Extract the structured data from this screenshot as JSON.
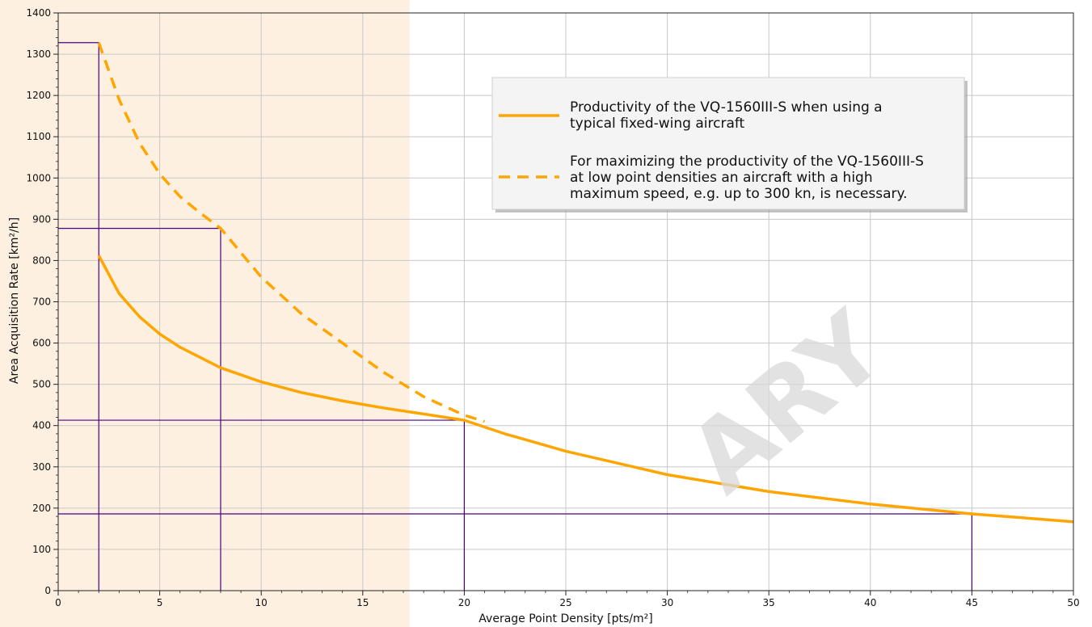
{
  "chart_data": {
    "type": "line",
    "xlabel": "Average Point Density [pts/m²]",
    "ylabel": "Area Acquisition Rate [km²/h]",
    "xlim": [
      0,
      50
    ],
    "ylim": [
      0,
      1400
    ],
    "x_ticks": [
      "0",
      "5",
      "10",
      "15",
      "20",
      "25",
      "30",
      "35",
      "40",
      "45",
      "50"
    ],
    "y_ticks": [
      "0",
      "100",
      "200",
      "300",
      "400",
      "500",
      "600",
      "700",
      "800",
      "900",
      "1000",
      "1100",
      "1200",
      "1300",
      "1400"
    ],
    "grid": true,
    "legend_position": "top-right",
    "shaded_region": {
      "x_from": 0,
      "x_to": 17.3,
      "color": "#fdf0e0"
    },
    "watermark": "ARY",
    "series": [
      {
        "name": "Productivity of the VQ-1560III-S when using a typical fixed-wing aircraft",
        "legend_lines": [
          "Productivity of the VQ-1560III-S when using a",
          "typical fixed-wing aircraft"
        ],
        "style": "solid",
        "color": "#ffa500",
        "x": [
          2,
          3,
          4,
          5,
          6,
          8,
          10,
          12,
          14,
          16,
          18,
          20,
          22,
          25,
          30,
          35,
          40,
          45,
          50
        ],
        "y": [
          812,
          720,
          664,
          622,
          590,
          540,
          506,
          480,
          460,
          443,
          428,
          413,
          380,
          338,
          281,
          240,
          210,
          186,
          167
        ]
      },
      {
        "name": "For maximizing the productivity of the VQ-1560III-S at low point densities an aircraft with a high maximum speed, e.g. up to 300 kn, is necessary.",
        "legend_lines": [
          "For maximizing the productivity of the VQ-1560III-S",
          "at low point densities an aircraft with a high",
          "maximum speed, e.g. up to 300 kn, is necessary."
        ],
        "style": "dashed",
        "color": "#ffa500",
        "x": [
          2,
          3,
          4,
          5,
          6,
          7,
          8,
          10,
          12,
          14,
          16,
          18,
          20,
          21
        ],
        "y": [
          1328,
          1190,
          1085,
          1010,
          955,
          915,
          878,
          760,
          670,
          600,
          530,
          470,
          425,
          410
        ]
      }
    ],
    "reference_lines": {
      "color": "#4b0082",
      "vertical": [
        {
          "x": 2,
          "y_top": 1328
        },
        {
          "x": 8,
          "y_top": 878
        },
        {
          "x": 20,
          "y_top": 413
        },
        {
          "x": 45,
          "y_top": 186
        }
      ],
      "horizontal": [
        {
          "y": 1328,
          "x_right": 2
        },
        {
          "y": 878,
          "x_right": 8
        },
        {
          "y": 413,
          "x_right": 20
        },
        {
          "y": 186,
          "x_right": 45
        }
      ]
    }
  }
}
